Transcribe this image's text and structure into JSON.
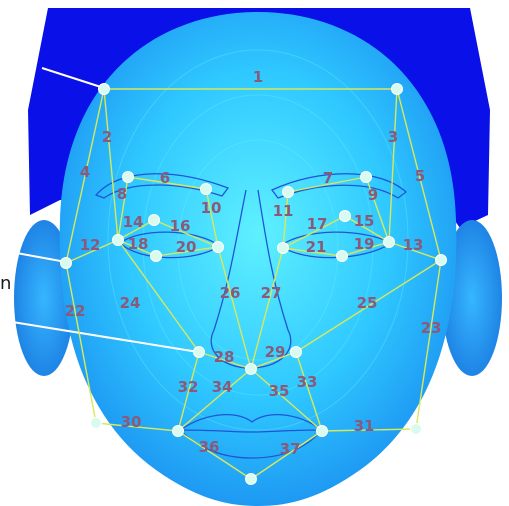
{
  "diagram": {
    "segments": [
      {
        "id": "1",
        "label": "1"
      },
      {
        "id": "2",
        "label": "2"
      },
      {
        "id": "3",
        "label": "3"
      },
      {
        "id": "4",
        "label": "4"
      },
      {
        "id": "5",
        "label": "5"
      },
      {
        "id": "6",
        "label": "6"
      },
      {
        "id": "7",
        "label": "7"
      },
      {
        "id": "8",
        "label": "8"
      },
      {
        "id": "9",
        "label": "9"
      },
      {
        "id": "10",
        "label": "10"
      },
      {
        "id": "11",
        "label": "11"
      },
      {
        "id": "12",
        "label": "12"
      },
      {
        "id": "13",
        "label": "13"
      },
      {
        "id": "14",
        "label": "14"
      },
      {
        "id": "15",
        "label": "15"
      },
      {
        "id": "16",
        "label": "16"
      },
      {
        "id": "17",
        "label": "17"
      },
      {
        "id": "18",
        "label": "18"
      },
      {
        "id": "19",
        "label": "19"
      },
      {
        "id": "20",
        "label": "20"
      },
      {
        "id": "21",
        "label": "21"
      },
      {
        "id": "22",
        "label": "22"
      },
      {
        "id": "23",
        "label": "23"
      },
      {
        "id": "24",
        "label": "24"
      },
      {
        "id": "25",
        "label": "25"
      },
      {
        "id": "26",
        "label": "26"
      },
      {
        "id": "27",
        "label": "27"
      },
      {
        "id": "28",
        "label": "28"
      },
      {
        "id": "29",
        "label": "29"
      },
      {
        "id": "30",
        "label": "30"
      },
      {
        "id": "31",
        "label": "31"
      },
      {
        "id": "32",
        "label": "32"
      },
      {
        "id": "33",
        "label": "33"
      },
      {
        "id": "34",
        "label": "34"
      },
      {
        "id": "35",
        "label": "35"
      },
      {
        "id": "36",
        "label": "36"
      },
      {
        "id": "37",
        "label": "37"
      }
    ],
    "cut_off_text": "n",
    "colors": {
      "hair": "#0a10e8",
      "face_light": "#5ff0ff",
      "face_dark": "#1a9ef0",
      "segment_line": "#d8e85a",
      "landmark_point": "#d9fbef",
      "label_text": "#8a5a78",
      "feature_outline": "#1f55d6",
      "pointer_line": "#ffffff"
    }
  }
}
